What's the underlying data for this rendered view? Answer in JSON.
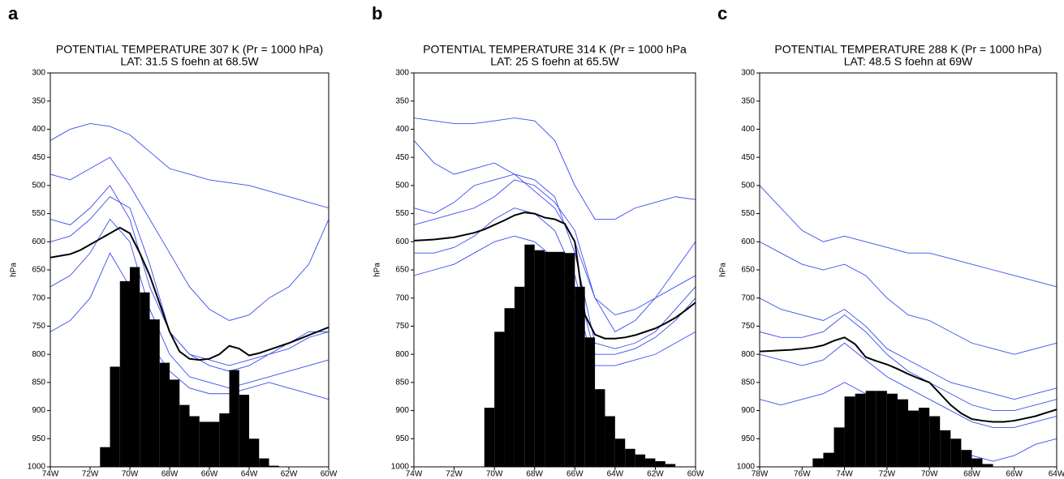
{
  "chart_data": [
    {
      "type": "line",
      "panel": "a",
      "title": "POTENTIAL TEMPERATURE 307 K  (Pr = 1000 hPa)",
      "subtitle": "LAT: 31.5 S    foehn at 68.5W",
      "ylabel": "hPa",
      "x": [
        -74,
        -73.5,
        -73,
        -72.5,
        -72,
        -71.5,
        -71,
        -70.5,
        -70,
        -69.5,
        -69,
        -68.5,
        -68,
        -67.5,
        -67,
        -66.5,
        -66,
        -65.5,
        -65,
        -64.5,
        -64,
        -63.5,
        -63,
        -62.5,
        -62,
        -61.5,
        -61,
        -60.5,
        -60
      ],
      "xlim": [
        -74,
        -60
      ],
      "xticks": [
        {
          "value": -74,
          "label": "74W"
        },
        {
          "value": -72,
          "label": "72W"
        },
        {
          "value": -70,
          "label": "70W"
        },
        {
          "value": -68,
          "label": "68W"
        },
        {
          "value": -66,
          "label": "66W"
        },
        {
          "value": -64,
          "label": "64W"
        },
        {
          "value": -62,
          "label": "62W"
        },
        {
          "value": -60,
          "label": "60W"
        }
      ],
      "ylim": [
        1000,
        300
      ],
      "yticks": [
        300,
        350,
        400,
        450,
        500,
        550,
        600,
        650,
        700,
        750,
        800,
        850,
        900,
        950,
        1000
      ],
      "mean": {
        "color": "#000000",
        "values": [
          628,
          625,
          622,
          615,
          605,
          595,
          585,
          575,
          585,
          620,
          660,
          710,
          760,
          795,
          808,
          810,
          808,
          800,
          785,
          790,
          802,
          798,
          792,
          786,
          780,
          773,
          766,
          759,
          752
        ]
      },
      "members": {
        "color": "#3a4cf0",
        "x": [
          -74,
          -73,
          -72,
          -71,
          -70,
          -69,
          -68,
          -67,
          -66,
          -65,
          -64,
          -63,
          -62,
          -61,
          -60
        ],
        "series": [
          [
            420,
            400,
            390,
            395,
            410,
            440,
            470,
            480,
            490,
            495,
            500,
            510,
            520,
            530,
            540
          ],
          [
            480,
            490,
            470,
            450,
            500,
            560,
            620,
            680,
            720,
            740,
            730,
            700,
            680,
            640,
            560
          ],
          [
            560,
            570,
            540,
            500,
            560,
            680,
            760,
            800,
            820,
            830,
            820,
            800,
            780,
            760,
            760
          ],
          [
            680,
            660,
            620,
            560,
            600,
            720,
            800,
            840,
            850,
            860,
            850,
            840,
            830,
            820,
            810
          ],
          [
            760,
            740,
            700,
            620,
            680,
            780,
            830,
            860,
            870,
            870,
            860,
            850,
            860,
            870,
            880
          ],
          [
            600,
            590,
            560,
            520,
            540,
            640,
            760,
            800,
            810,
            820,
            810,
            800,
            790,
            770,
            760
          ]
        ]
      },
      "terrain": {
        "color": "#000000",
        "bins": [
          -71.5,
          -71,
          -70.5,
          -70,
          -69.5,
          -69,
          -68.5,
          -68,
          -67.5,
          -67,
          -66.5,
          -66,
          -65.5,
          -65,
          -64.5,
          -64,
          -63.5,
          -63,
          -62.5
        ],
        "values": [
          965,
          822,
          670,
          645,
          690,
          738,
          815,
          845,
          890,
          910,
          920,
          920,
          905,
          828,
          872,
          950,
          985,
          998
        ]
      }
    },
    {
      "type": "line",
      "panel": "b",
      "title": "POTENTIAL TEMPERATURE 314 K  (Pr = 1000 hPa",
      "subtitle": "LAT: 25 S    foehn at 65.5W",
      "ylabel": "hPa",
      "x": [
        -74,
        -73.5,
        -73,
        -72.5,
        -72,
        -71.5,
        -71,
        -70.5,
        -70,
        -69.5,
        -69,
        -68.5,
        -68,
        -67.5,
        -67,
        -66.5,
        -66,
        -65.5,
        -65,
        -64.5,
        -64,
        -63.5,
        -63,
        -62.5,
        -62,
        -61.5,
        -61,
        -60.5,
        -60
      ],
      "xlim": [
        -74,
        -60
      ],
      "xticks": [
        {
          "value": -74,
          "label": "74W"
        },
        {
          "value": -72,
          "label": "72W"
        },
        {
          "value": -70,
          "label": "70W"
        },
        {
          "value": -68,
          "label": "68W"
        },
        {
          "value": -66,
          "label": "66W"
        },
        {
          "value": -64,
          "label": "64W"
        },
        {
          "value": -62,
          "label": "62W"
        },
        {
          "value": -60,
          "label": "60W"
        }
      ],
      "ylim": [
        1000,
        300
      ],
      "yticks": [
        300,
        350,
        400,
        450,
        500,
        550,
        600,
        650,
        700,
        750,
        800,
        850,
        900,
        950,
        1000
      ],
      "mean": {
        "color": "#000000",
        "values": [
          598,
          597,
          596,
          594,
          592,
          588,
          584,
          578,
          570,
          562,
          553,
          548,
          550,
          557,
          560,
          568,
          600,
          730,
          765,
          772,
          772,
          770,
          766,
          760,
          754,
          745,
          735,
          722,
          708
        ]
      },
      "members": {
        "color": "#3a4cf0",
        "x": [
          -74,
          -73,
          -72,
          -71,
          -70,
          -69,
          -68,
          -67,
          -66,
          -65,
          -64,
          -63,
          -62,
          -61,
          -60
        ],
        "series": [
          [
            380,
            385,
            390,
            390,
            385,
            380,
            385,
            420,
            500,
            560,
            560,
            540,
            530,
            520,
            525
          ],
          [
            420,
            460,
            480,
            470,
            460,
            480,
            510,
            540,
            600,
            700,
            760,
            740,
            700,
            650,
            600
          ],
          [
            540,
            550,
            530,
            500,
            490,
            480,
            490,
            520,
            620,
            780,
            790,
            780,
            760,
            720,
            680
          ],
          [
            620,
            620,
            610,
            590,
            560,
            540,
            550,
            580,
            660,
            800,
            800,
            790,
            770,
            740,
            700
          ],
          [
            660,
            650,
            640,
            620,
            600,
            590,
            600,
            630,
            700,
            820,
            820,
            810,
            800,
            780,
            760
          ],
          [
            570,
            560,
            550,
            540,
            520,
            490,
            500,
            530,
            580,
            700,
            730,
            720,
            700,
            680,
            660
          ]
        ]
      },
      "terrain": {
        "color": "#000000",
        "bins": [
          -70.5,
          -70,
          -69.5,
          -69,
          -68.5,
          -68,
          -67.5,
          -67,
          -66.5,
          -66,
          -65.5,
          -65,
          -64.5,
          -64,
          -63.5,
          -63,
          -62.5,
          -62,
          -61.5,
          -61
        ],
        "values": [
          895,
          760,
          718,
          680,
          605,
          615,
          618,
          618,
          620,
          680,
          770,
          862,
          910,
          950,
          968,
          978,
          985,
          990,
          995
        ]
      }
    },
    {
      "type": "line",
      "panel": "c",
      "title": "POTENTIAL TEMPERATURE 288 K  (Pr = 1000 hPa)",
      "subtitle": "LAT: 48.5 S    foehn at 69W",
      "ylabel": "hPa",
      "x": [
        -78,
        -77.5,
        -77,
        -76.5,
        -76,
        -75.5,
        -75,
        -74.5,
        -74,
        -73.5,
        -73,
        -72.5,
        -72,
        -71.5,
        -71,
        -70.5,
        -70,
        -69.5,
        -69,
        -68.5,
        -68,
        -67.5,
        -67,
        -66.5,
        -66,
        -65.5,
        -65,
        -64.5,
        -64
      ],
      "xlim": [
        -78,
        -64
      ],
      "xticks": [
        {
          "value": -78,
          "label": "78W"
        },
        {
          "value": -76,
          "label": "76W"
        },
        {
          "value": -74,
          "label": "74W"
        },
        {
          "value": -72,
          "label": "72W"
        },
        {
          "value": -70,
          "label": "70W"
        },
        {
          "value": -68,
          "label": "68W"
        },
        {
          "value": -66,
          "label": "66W"
        },
        {
          "value": -64,
          "label": "64W"
        }
      ],
      "ylim": [
        1000,
        300
      ],
      "yticks": [
        300,
        350,
        400,
        450,
        500,
        550,
        600,
        650,
        700,
        750,
        800,
        850,
        900,
        950,
        1000
      ],
      "mean": {
        "color": "#000000",
        "values": [
          795,
          794,
          793,
          792,
          790,
          788,
          784,
          776,
          770,
          782,
          805,
          812,
          818,
          826,
          835,
          843,
          850,
          870,
          890,
          905,
          915,
          918,
          920,
          920,
          918,
          914,
          910,
          904,
          898
        ]
      },
      "members": {
        "color": "#3a4cf0",
        "x": [
          -78,
          -77,
          -76,
          -75,
          -74,
          -73,
          -72,
          -71,
          -70,
          -69,
          -68,
          -67,
          -66,
          -65,
          -64
        ],
        "series": [
          [
            500,
            540,
            580,
            600,
            590,
            600,
            610,
            620,
            620,
            630,
            640,
            650,
            660,
            670,
            680
          ],
          [
            600,
            620,
            640,
            650,
            640,
            660,
            700,
            730,
            740,
            760,
            780,
            790,
            800,
            790,
            780
          ],
          [
            700,
            720,
            730,
            740,
            720,
            750,
            790,
            810,
            830,
            850,
            860,
            870,
            880,
            870,
            860
          ],
          [
            800,
            810,
            820,
            810,
            780,
            810,
            840,
            860,
            880,
            900,
            920,
            930,
            930,
            920,
            910
          ],
          [
            880,
            890,
            880,
            870,
            850,
            870,
            900,
            920,
            940,
            960,
            980,
            990,
            980,
            960,
            950
          ],
          [
            760,
            770,
            770,
            760,
            730,
            760,
            800,
            830,
            850,
            870,
            890,
            900,
            900,
            890,
            880
          ]
        ]
      },
      "terrain": {
        "color": "#000000",
        "bins": [
          -75.5,
          -75,
          -74.5,
          -74,
          -73.5,
          -73,
          -72.5,
          -72,
          -71.5,
          -71,
          -70.5,
          -70,
          -69.5,
          -69,
          -68.5,
          -68,
          -67.5,
          -67
        ],
        "values": [
          985,
          975,
          930,
          875,
          870,
          865,
          865,
          870,
          880,
          900,
          895,
          910,
          935,
          950,
          970,
          985,
          995
        ]
      }
    }
  ]
}
